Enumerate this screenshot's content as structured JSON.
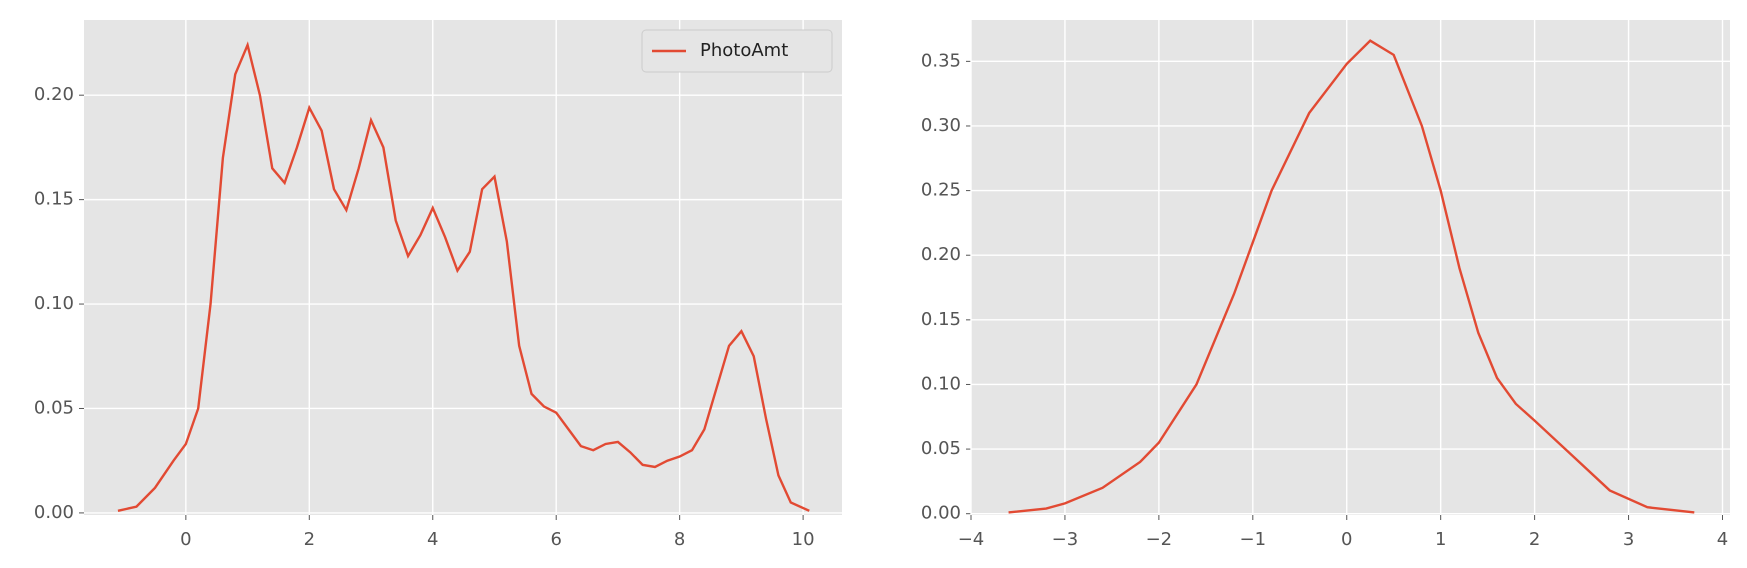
{
  "chart_data": [
    {
      "type": "line",
      "x": [
        -1.1,
        -0.8,
        -0.5,
        -0.2,
        0,
        0.2,
        0.4,
        0.6,
        0.8,
        1.0,
        1.2,
        1.4,
        1.6,
        1.8,
        2.0,
        2.2,
        2.4,
        2.6,
        2.8,
        3.0,
        3.2,
        3.4,
        3.6,
        3.8,
        4.0,
        4.2,
        4.4,
        4.6,
        4.8,
        5.0,
        5.2,
        5.4,
        5.6,
        5.8,
        6.0,
        6.2,
        6.4,
        6.6,
        6.8,
        7.0,
        7.2,
        7.4,
        7.6,
        7.8,
        8.0,
        8.2,
        8.4,
        8.6,
        8.8,
        9.0,
        9.2,
        9.4,
        9.6,
        9.8,
        10.1
      ],
      "series": [
        {
          "name": "PhotoAmt",
          "color": "#e24a33",
          "values": [
            0.001,
            0.003,
            0.012,
            0.025,
            0.033,
            0.05,
            0.1,
            0.17,
            0.21,
            0.224,
            0.2,
            0.165,
            0.158,
            0.175,
            0.194,
            0.183,
            0.155,
            0.145,
            0.165,
            0.188,
            0.175,
            0.14,
            0.123,
            0.133,
            0.146,
            0.132,
            0.116,
            0.125,
            0.155,
            0.161,
            0.13,
            0.08,
            0.057,
            0.051,
            0.048,
            0.04,
            0.032,
            0.03,
            0.033,
            0.034,
            0.029,
            0.023,
            0.022,
            0.025,
            0.027,
            0.03,
            0.04,
            0.06,
            0.08,
            0.087,
            0.075,
            0.045,
            0.018,
            0.005,
            0.001
          ]
        }
      ],
      "xlim": [
        -1.65,
        10.63
      ],
      "xticks": [
        0,
        2,
        4,
        6,
        8,
        10
      ],
      "ylim": [
        -0.001,
        0.236
      ],
      "yticks": [
        {
          "value": 0,
          "label": "0.00"
        },
        {
          "value": 0.05,
          "label": "0.05"
        },
        {
          "value": 0.1,
          "label": "0.10"
        },
        {
          "value": 0.15,
          "label": "0.15"
        },
        {
          "value": 0.2,
          "label": "0.20"
        }
      ],
      "grid": true,
      "legend": "upper right"
    },
    {
      "type": "line",
      "x": [
        -3.6,
        -3.2,
        -3.0,
        -2.6,
        -2.2,
        -2.0,
        -1.6,
        -1.2,
        -1.0,
        -0.8,
        -0.4,
        0,
        0.25,
        0.5,
        0.8,
        1.0,
        1.2,
        1.4,
        1.6,
        1.8,
        2.0,
        2.4,
        2.8,
        3.2,
        3.7
      ],
      "series": [
        {
          "color": "#e24a33",
          "values": [
            0.001,
            0.004,
            0.008,
            0.02,
            0.04,
            0.055,
            0.1,
            0.17,
            0.21,
            0.25,
            0.31,
            0.348,
            0.366,
            0.355,
            0.3,
            0.25,
            0.19,
            0.14,
            0.105,
            0.085,
            0.072,
            0.045,
            0.018,
            0.005,
            0.001
          ]
        }
      ],
      "xlim": [
        -4,
        4.08
      ],
      "xticks": [
        {
          "value": -4,
          "label": "−4"
        },
        {
          "value": -3,
          "label": "−3"
        },
        {
          "value": -2,
          "label": "−2"
        },
        {
          "value": -1,
          "label": "−1"
        },
        0,
        1,
        2,
        3,
        4
      ],
      "ylim": [
        -0.001,
        0.382
      ],
      "yticks": [
        {
          "value": 0,
          "label": "0.00"
        },
        {
          "value": 0.05,
          "label": "0.05"
        },
        {
          "value": 0.1,
          "label": "0.10"
        },
        {
          "value": 0.15,
          "label": "0.15"
        },
        {
          "value": 0.2,
          "label": "0.20"
        },
        {
          "value": 0.25,
          "label": "0.25"
        },
        {
          "value": 0.3,
          "label": "0.30"
        },
        {
          "value": 0.35,
          "label": "0.35"
        }
      ],
      "grid": true
    }
  ]
}
